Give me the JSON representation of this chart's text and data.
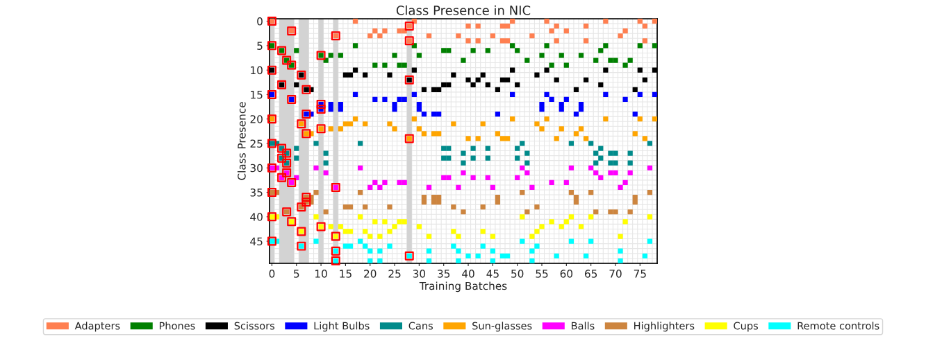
{
  "chart_data": {
    "type": "scatter",
    "title": "Class Presence in NIC",
    "xlabel": "Training Batches",
    "ylabel": "Class Presence",
    "xlim": [
      -0.5,
      78.5
    ],
    "ylim": [
      49.5,
      -0.5
    ],
    "xticks": [
      0,
      5,
      10,
      15,
      20,
      25,
      30,
      35,
      40,
      45,
      50,
      55,
      60,
      65,
      70,
      75
    ],
    "yticks": [
      0,
      5,
      10,
      15,
      20,
      25,
      30,
      35,
      40,
      45
    ],
    "grid": true,
    "legend": "bottom",
    "marker": "square",
    "bands": [
      {
        "axis": "x",
        "from": -0.5,
        "to": 0.5,
        "color": "#d3d3d3"
      },
      {
        "axis": "x",
        "from": 1.5,
        "to": 4.5,
        "color": "#d3d3d3"
      },
      {
        "axis": "x",
        "from": 5.5,
        "to": 7.5,
        "color": "#d3d3d3"
      },
      {
        "axis": "x",
        "from": 9.5,
        "to": 10.5,
        "color": "#d3d3d3"
      },
      {
        "axis": "x",
        "from": 12.5,
        "to": 13.5,
        "color": "#d3d3d3"
      },
      {
        "axis": "x",
        "from": 27.5,
        "to": 28.5,
        "color": "#d3d3d3"
      }
    ],
    "series": [
      {
        "name": "Adapters",
        "color": "#ff7f50",
        "x": [
          0,
          17,
          29,
          49,
          56,
          68,
          75,
          78,
          28,
          40,
          42,
          47,
          48,
          58,
          64,
          76,
          4,
          21,
          23,
          26,
          27,
          57,
          60,
          72,
          13,
          20,
          22,
          32,
          38,
          45,
          53,
          71,
          28,
          40,
          42,
          47,
          48,
          58,
          64,
          76
        ],
        "values": [
          0,
          0,
          0,
          0,
          0,
          0,
          0,
          0,
          1,
          1,
          1,
          1,
          1,
          1,
          1,
          1,
          2,
          2,
          2,
          2,
          2,
          2,
          2,
          2,
          3,
          3,
          3,
          3,
          3,
          3,
          3,
          3,
          4,
          4,
          4,
          4,
          4,
          4,
          4,
          4
        ]
      },
      {
        "name": "Phones",
        "color": "#008000",
        "x": [
          0,
          17,
          29,
          49,
          56,
          68,
          75,
          78,
          2,
          5,
          35,
          36,
          41,
          44,
          50,
          67,
          10,
          12,
          14,
          25,
          30,
          55,
          59,
          63,
          3,
          11,
          39,
          52,
          66,
          69,
          70,
          73,
          4,
          21,
          23,
          26,
          27,
          57,
          60,
          72
        ],
        "values": [
          5,
          5,
          5,
          5,
          5,
          5,
          5,
          5,
          6,
          6,
          6,
          6,
          6,
          6,
          6,
          6,
          7,
          7,
          7,
          7,
          7,
          7,
          7,
          7,
          8,
          8,
          8,
          8,
          8,
          8,
          8,
          8,
          9,
          9,
          9,
          9,
          9,
          9,
          9,
          9
        ]
      },
      {
        "name": "Scissors",
        "color": "#000000",
        "x": [
          0,
          17,
          29,
          49,
          56,
          68,
          75,
          78,
          6,
          15,
          16,
          19,
          24,
          37,
          43,
          54,
          28,
          40,
          42,
          47,
          48,
          58,
          64,
          76,
          2,
          5,
          35,
          36,
          41,
          44,
          50,
          67,
          7,
          8,
          31,
          33,
          34,
          46,
          62,
          74
        ],
        "values": [
          10,
          10,
          10,
          10,
          10,
          10,
          10,
          10,
          11,
          11,
          11,
          11,
          11,
          11,
          11,
          11,
          12,
          12,
          12,
          12,
          12,
          12,
          12,
          12,
          13,
          13,
          13,
          13,
          13,
          13,
          13,
          13,
          14,
          14,
          14,
          14,
          14,
          14,
          14,
          14
        ]
      },
      {
        "name": "Light Bulbs",
        "color": "#0000ff",
        "x": [
          0,
          17,
          29,
          49,
          56,
          68,
          75,
          78,
          4,
          21,
          23,
          26,
          27,
          57,
          60,
          72,
          10,
          12,
          14,
          25,
          30,
          55,
          59,
          63,
          10,
          12,
          14,
          25,
          30,
          55,
          59,
          63,
          7,
          8,
          31,
          33,
          34,
          46,
          62,
          74
        ],
        "values": [
          15,
          15,
          15,
          15,
          15,
          15,
          15,
          15,
          16,
          16,
          16,
          16,
          16,
          16,
          16,
          16,
          17,
          17,
          17,
          17,
          17,
          17,
          17,
          17,
          18,
          18,
          18,
          18,
          18,
          18,
          18,
          18,
          19,
          19,
          19,
          19,
          19,
          19,
          19,
          19
        ]
      },
      {
        "name": "Cans",
        "color": "#008b8b",
        "x": [
          0,
          1,
          9,
          18,
          51,
          61,
          65,
          77,
          2,
          5,
          35,
          36,
          41,
          44,
          50,
          67,
          3,
          11,
          39,
          52,
          66,
          69,
          70,
          73,
          2,
          5,
          35,
          36,
          41,
          44,
          50,
          67,
          3,
          11,
          39,
          52,
          66,
          69,
          70,
          73
        ],
        "values": [
          25,
          25,
          25,
          25,
          25,
          25,
          25,
          25,
          26,
          26,
          26,
          26,
          26,
          26,
          26,
          26,
          27,
          27,
          27,
          27,
          27,
          27,
          27,
          27,
          28,
          28,
          28,
          28,
          28,
          28,
          28,
          28,
          29,
          29,
          29,
          29,
          29,
          29,
          29,
          29
        ]
      },
      {
        "name": "Sun-glasses",
        "color": "#ffa500",
        "x": [
          0,
          17,
          29,
          49,
          56,
          68,
          75,
          78,
          6,
          15,
          16,
          19,
          24,
          37,
          43,
          54,
          10,
          12,
          14,
          25,
          30,
          55,
          59,
          63,
          7,
          8,
          31,
          33,
          34,
          46,
          62,
          74,
          28,
          40,
          42,
          47,
          48,
          58,
          64,
          76
        ],
        "values": [
          20,
          20,
          20,
          20,
          20,
          20,
          20,
          20,
          21,
          21,
          21,
          21,
          21,
          21,
          21,
          21,
          22,
          22,
          22,
          22,
          22,
          22,
          22,
          22,
          23,
          23,
          23,
          23,
          23,
          23,
          23,
          23,
          24,
          24,
          24,
          24,
          24,
          24,
          24,
          24
        ]
      },
      {
        "name": "Balls",
        "color": "#ff00ff",
        "x": [
          0,
          1,
          9,
          18,
          51,
          61,
          65,
          77,
          3,
          11,
          39,
          52,
          66,
          69,
          70,
          73,
          2,
          5,
          35,
          36,
          41,
          44,
          50,
          67,
          4,
          21,
          23,
          26,
          27,
          57,
          60,
          72,
          13,
          20,
          22,
          32,
          38,
          45,
          53,
          71
        ],
        "values": [
          30,
          30,
          30,
          30,
          30,
          30,
          30,
          30,
          31,
          31,
          31,
          31,
          31,
          31,
          31,
          31,
          32,
          32,
          32,
          32,
          32,
          32,
          32,
          32,
          33,
          33,
          33,
          33,
          33,
          33,
          33,
          33,
          34,
          34,
          34,
          34,
          34,
          34,
          34,
          34
        ]
      },
      {
        "name": "Highlighters",
        "color": "#cd853f",
        "x": [
          0,
          1,
          9,
          18,
          51,
          61,
          65,
          77,
          7,
          8,
          31,
          33,
          34,
          46,
          62,
          74,
          7,
          8,
          31,
          33,
          34,
          46,
          62,
          74,
          6,
          15,
          16,
          19,
          24,
          37,
          43,
          54,
          3,
          11,
          39,
          52,
          66,
          69,
          70,
          73
        ],
        "values": [
          35,
          35,
          35,
          35,
          35,
          35,
          35,
          35,
          36,
          36,
          36,
          36,
          36,
          36,
          36,
          36,
          37,
          37,
          37,
          37,
          37,
          37,
          37,
          37,
          38,
          38,
          38,
          38,
          38,
          38,
          38,
          38,
          39,
          39,
          39,
          39,
          39,
          39,
          39,
          39
        ]
      },
      {
        "name": "Cups",
        "color": "#ffff00",
        "x": [
          0,
          1,
          9,
          18,
          51,
          61,
          65,
          77,
          4,
          21,
          23,
          26,
          27,
          57,
          60,
          72,
          10,
          12,
          14,
          25,
          30,
          55,
          59,
          63,
          6,
          15,
          16,
          19,
          24,
          37,
          43,
          54,
          13,
          20,
          22,
          32,
          38,
          45,
          53,
          71
        ],
        "values": [
          40,
          40,
          40,
          40,
          40,
          40,
          40,
          40,
          41,
          41,
          41,
          41,
          41,
          41,
          41,
          41,
          42,
          42,
          42,
          42,
          42,
          42,
          42,
          42,
          43,
          43,
          43,
          43,
          43,
          43,
          43,
          43,
          44,
          44,
          44,
          44,
          44,
          44,
          44,
          44
        ]
      },
      {
        "name": "Remote controls",
        "color": "#00ffff",
        "x": [
          0,
          1,
          9,
          18,
          51,
          61,
          65,
          77,
          6,
          15,
          16,
          19,
          24,
          37,
          43,
          54,
          13,
          20,
          22,
          32,
          38,
          45,
          53,
          71,
          28,
          40,
          42,
          47,
          48,
          58,
          64,
          76,
          13,
          20,
          22,
          32,
          38,
          45,
          53,
          71
        ],
        "values": [
          45,
          45,
          45,
          45,
          45,
          45,
          45,
          45,
          46,
          46,
          46,
          46,
          46,
          46,
          46,
          46,
          47,
          47,
          47,
          47,
          47,
          47,
          47,
          47,
          48,
          48,
          48,
          48,
          48,
          48,
          48,
          48,
          49,
          49,
          49,
          49,
          49,
          49,
          49,
          49
        ]
      },
      {
        "color": "#ff0000",
        "marker": "square",
        "x": [
          0,
          28,
          4,
          13,
          28,
          0,
          2,
          10,
          3,
          4,
          0,
          6,
          28,
          2,
          7,
          0,
          4,
          10,
          10,
          7,
          0,
          6,
          10,
          7,
          28,
          0,
          2,
          3,
          2,
          3,
          0,
          3,
          2,
          4,
          13,
          0,
          7,
          7,
          6,
          3,
          0,
          4,
          10,
          6,
          13,
          0,
          6,
          13,
          28,
          13
        ],
        "values": [
          0,
          1,
          2,
          3,
          4,
          5,
          6,
          7,
          8,
          9,
          10,
          11,
          12,
          13,
          14,
          15,
          16,
          17,
          18,
          19,
          20,
          21,
          22,
          23,
          24,
          25,
          26,
          27,
          28,
          29,
          30,
          31,
          32,
          33,
          34,
          35,
          36,
          37,
          38,
          39,
          40,
          41,
          42,
          43,
          44,
          45,
          46,
          47,
          48,
          49
        ]
      }
    ]
  }
}
